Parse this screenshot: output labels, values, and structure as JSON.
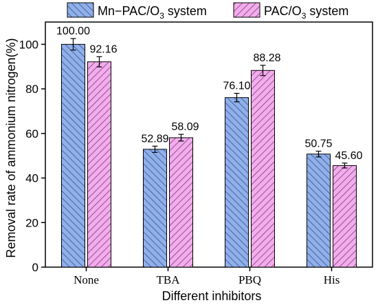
{
  "chart_data": {
    "type": "bar",
    "xlabel": "Different inhibitors",
    "ylabel": "Removal rate of ammonium nitrogen(%)",
    "categories": [
      "None",
      "TBA",
      "PBQ",
      "His"
    ],
    "ylim": [
      0,
      110
    ],
    "yticks": [
      0,
      20,
      40,
      60,
      80,
      100
    ],
    "grid": false,
    "legend_position": "top",
    "series": [
      {
        "name": "Mn-PAC/O3 system",
        "legend_label": {
          "prefix": "Mn−PAC/O",
          "sub": "3",
          "suffix": " system"
        },
        "values": [
          100.0,
          52.89,
          76.1,
          50.75
        ],
        "value_labels": [
          "100.00",
          "52.89",
          "76.10",
          "50.75"
        ],
        "errors": [
          2.6,
          1.4,
          1.9,
          1.3
        ],
        "fill": "#8fb0e8",
        "hatch": "#3a4e95"
      },
      {
        "name": "PAC/O3 system",
        "legend_label": {
          "prefix": "PAC/O",
          "sub": "3",
          "suffix": " system"
        },
        "values": [
          92.16,
          58.09,
          88.28,
          45.6
        ],
        "value_labels": [
          "92.16",
          "58.09",
          "88.28",
          "45.60"
        ],
        "errors": [
          2.3,
          1.5,
          2.3,
          1.1
        ],
        "fill": "#f0aeea",
        "hatch": "#8e2f8c"
      }
    ]
  }
}
